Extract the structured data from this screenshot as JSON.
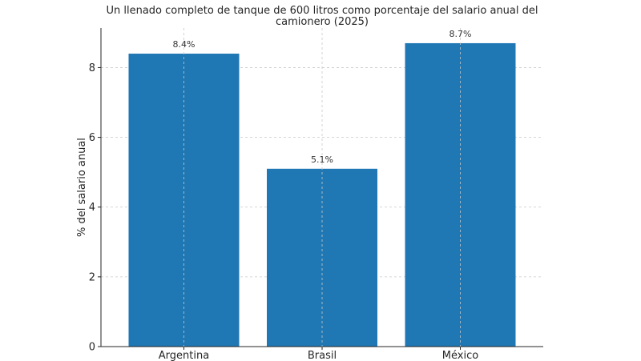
{
  "chart_data": {
    "type": "bar",
    "title": "Un llenado completo de tanque de 600 litros como porcentaje del salario anual del camionero (2025)",
    "title_lines": [
      "Un llenado completo de tanque de 600 litros como porcentaje del salario anual del",
      "camionero (2025)"
    ],
    "xlabel": "",
    "ylabel": "% del salario anual",
    "categories": [
      "Argentina",
      "Brasil",
      "México"
    ],
    "values": [
      8.4,
      5.1,
      8.7
    ],
    "data_labels": [
      "8.4%",
      "5.1%",
      "8.7%"
    ],
    "ylim": [
      0,
      9.135
    ],
    "yticks": [
      0,
      2,
      4,
      6,
      8
    ],
    "ytick_labels": [
      "0",
      "2",
      "4",
      "6",
      "8"
    ],
    "grid": true,
    "grid_style": "dashed",
    "legend": "none",
    "colors": {
      "bar": "#1f77b4",
      "grid": "#c9c9c9",
      "axis": "#262626"
    }
  }
}
